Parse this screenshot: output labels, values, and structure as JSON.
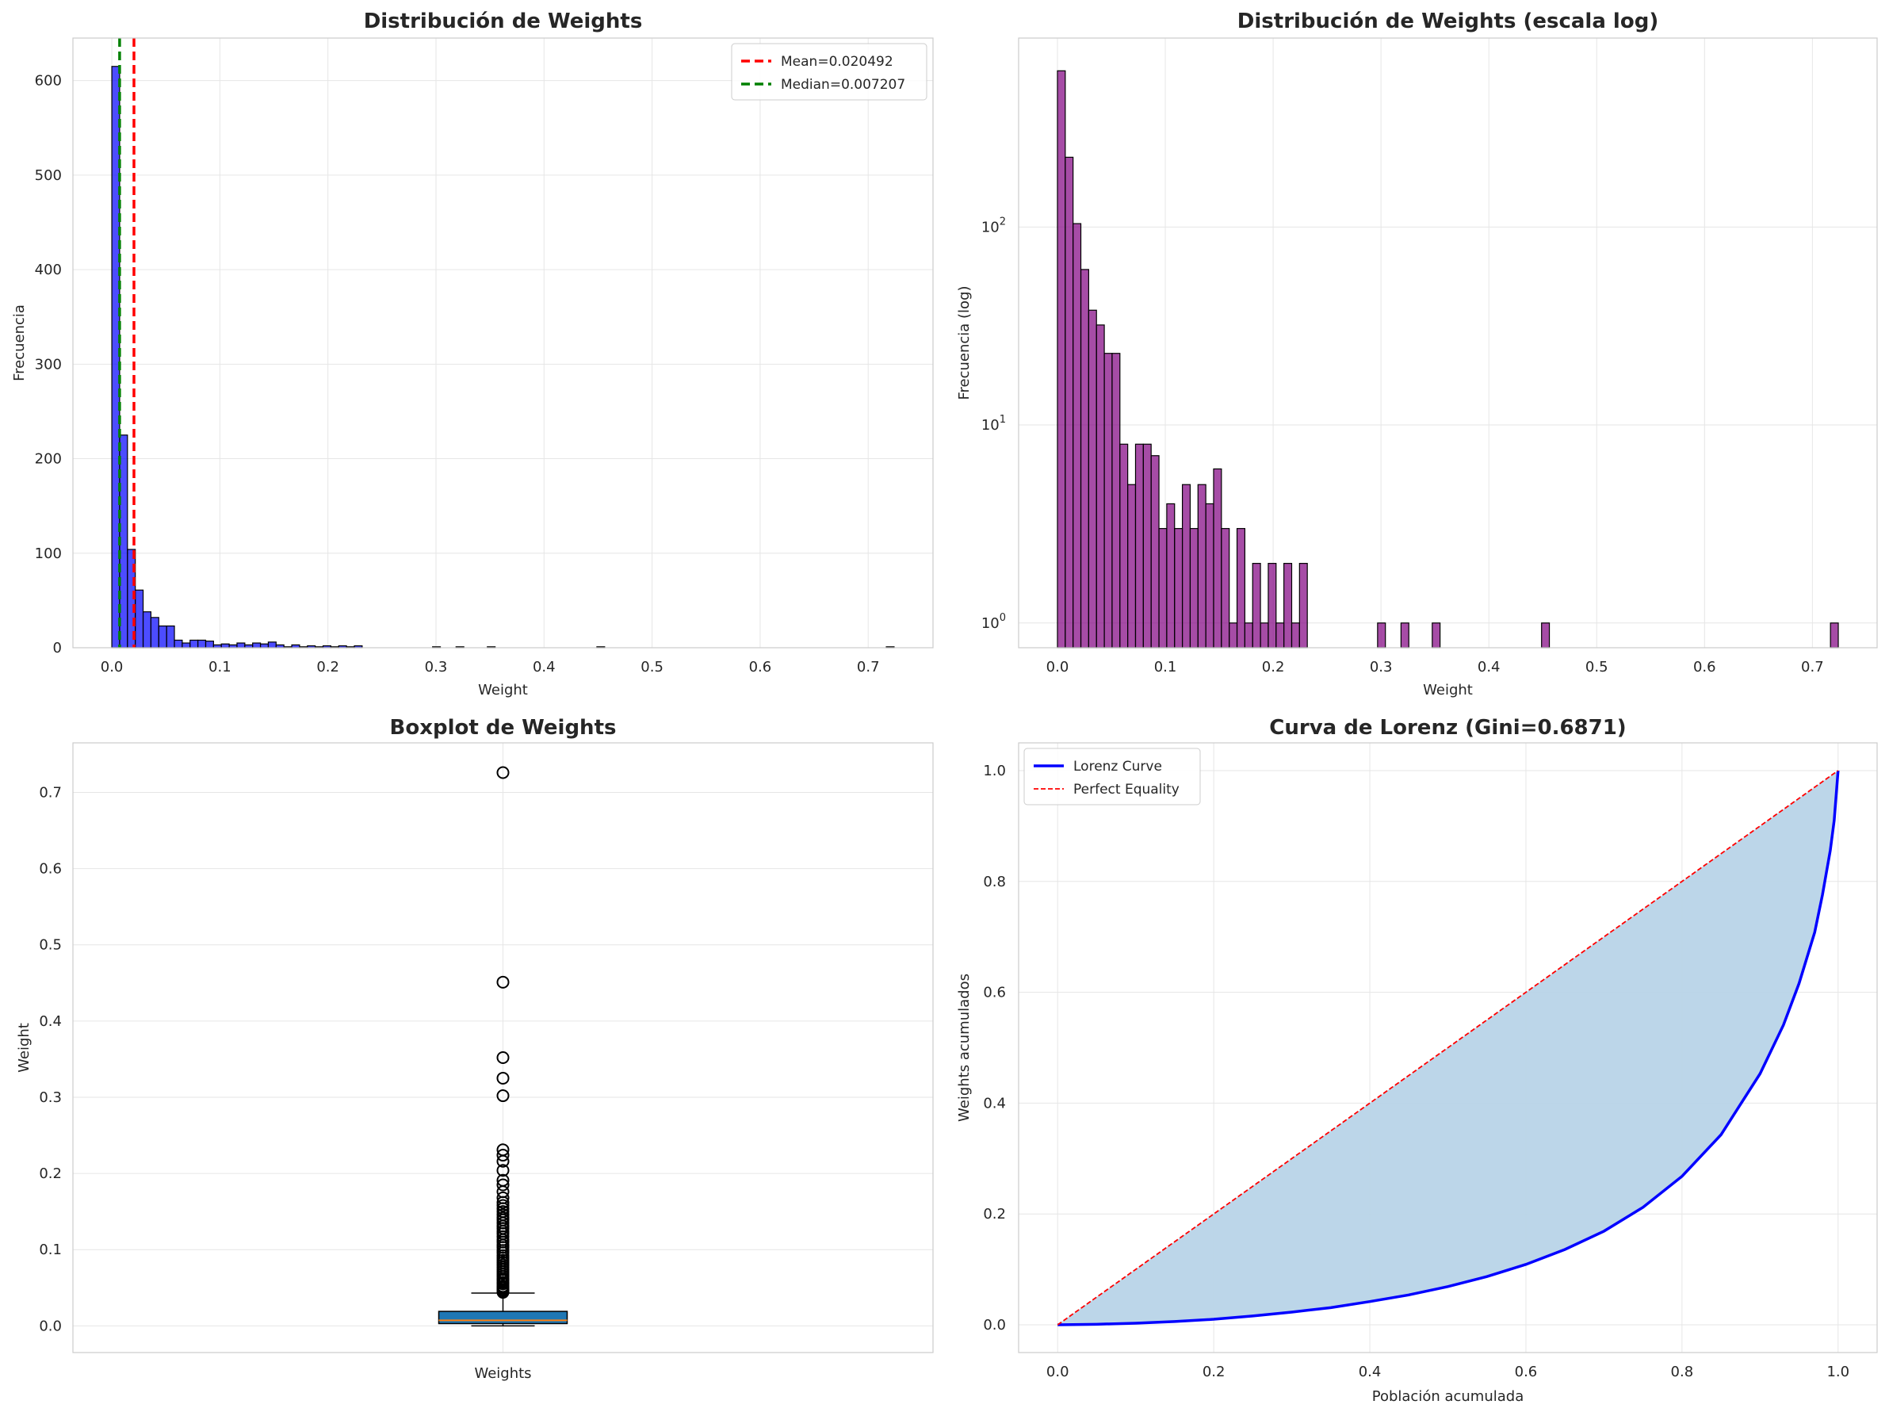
{
  "chart_data": [
    {
      "type": "bar",
      "title": "Distribución de Weights",
      "xlabel": "Weight",
      "ylabel": "Frecuencia",
      "xlim": [
        -0.036,
        0.76
      ],
      "ylim": [
        0,
        645
      ],
      "xticks": [
        "0.0",
        "0.1",
        "0.2",
        "0.3",
        "0.4",
        "0.5",
        "0.6",
        "0.7"
      ],
      "yticks": [
        "0",
        "100",
        "200",
        "300",
        "400",
        "500",
        "600"
      ],
      "bin_width": 0.00724,
      "bin_start": 0.0,
      "values": [
        615,
        225,
        104,
        61,
        38,
        32,
        23,
        23,
        8,
        5,
        8,
        8,
        7,
        3,
        4,
        3,
        5,
        3,
        5,
        4,
        6,
        3,
        1,
        3,
        1,
        2,
        1,
        2,
        1,
        2,
        1,
        2,
        0,
        0,
        0,
        0,
        0,
        0,
        0,
        0,
        0,
        1,
        0,
        0,
        1,
        0,
        0,
        0,
        1,
        0,
        0,
        0,
        0,
        0,
        0,
        0,
        0,
        0,
        0,
        0,
        0,
        0,
        1,
        0,
        0,
        0,
        0,
        0,
        0,
        0,
        0,
        0,
        0,
        0,
        0,
        0,
        0,
        0,
        0,
        0,
        0,
        0,
        0,
        0,
        0,
        0,
        0,
        0,
        0,
        0,
        0,
        0,
        0,
        0,
        0,
        0,
        0,
        0,
        0,
        1
      ],
      "bar_color": "#0000ff",
      "vlines": [
        {
          "name": "Mean=0.020492",
          "x": 0.020492,
          "color": "#ff0000"
        },
        {
          "name": "Median=0.007207",
          "x": 0.007207,
          "color": "#008000"
        }
      ],
      "legend_position": "top-right",
      "grid": true
    },
    {
      "type": "bar",
      "title": "Distribución de Weights (escala log)",
      "xlabel": "Weight",
      "ylabel": "Frecuencia (log)",
      "yscale": "log",
      "xlim": [
        -0.036,
        0.76
      ],
      "ylim": [
        0.75,
        900
      ],
      "xticks": [
        "0.0",
        "0.1",
        "0.2",
        "0.3",
        "0.4",
        "0.5",
        "0.6",
        "0.7"
      ],
      "yticks": [
        {
          "base": "10",
          "exp": "0",
          "value": 1
        },
        {
          "base": "10",
          "exp": "1",
          "value": 10
        },
        {
          "base": "10",
          "exp": "2",
          "value": 100
        }
      ],
      "bin_width": 0.00724,
      "bin_start": 0.0,
      "values": [
        615,
        225,
        104,
        61,
        38,
        32,
        23,
        23,
        8,
        5,
        8,
        8,
        7,
        3,
        4,
        3,
        5,
        3,
        5,
        4,
        6,
        3,
        1,
        3,
        1,
        2,
        1,
        2,
        1,
        2,
        1,
        2,
        0,
        0,
        0,
        0,
        0,
        0,
        0,
        0,
        0,
        1,
        0,
        0,
        1,
        0,
        0,
        0,
        1,
        0,
        0,
        0,
        0,
        0,
        0,
        0,
        0,
        0,
        0,
        0,
        0,
        0,
        1,
        0,
        0,
        0,
        0,
        0,
        0,
        0,
        0,
        0,
        0,
        0,
        0,
        0,
        0,
        0,
        0,
        0,
        0,
        0,
        0,
        0,
        0,
        0,
        0,
        0,
        0,
        0,
        0,
        0,
        0,
        0,
        0,
        0,
        0,
        0,
        0,
        1
      ],
      "bar_color": "#800080",
      "grid": true
    },
    {
      "type": "box",
      "title": "Boxplot de Weights",
      "xlabel": "",
      "ylabel": "Weight",
      "categories": [
        "Weights"
      ],
      "ylim": [
        -0.035,
        0.765
      ],
      "yticks": [
        "0.0",
        "0.1",
        "0.2",
        "0.3",
        "0.4",
        "0.5",
        "0.6",
        "0.7"
      ],
      "box": {
        "whisker_low": 0.0,
        "q1": 0.003,
        "median": 0.007207,
        "q3": 0.019,
        "whisker_high": 0.043
      },
      "box_color": "#1f77b4",
      "median_color": "#ff7f0e",
      "outliers": [
        0.726,
        0.451,
        0.352,
        0.325,
        0.302,
        0.231,
        0.224,
        0.216,
        0.204,
        0.191,
        0.185,
        0.176,
        0.168,
        0.162,
        0.158,
        0.154,
        0.15,
        0.146,
        0.142,
        0.139,
        0.135,
        0.131,
        0.128,
        0.124,
        0.121,
        0.117,
        0.113,
        0.11,
        0.106,
        0.103,
        0.099,
        0.096,
        0.092,
        0.089,
        0.086,
        0.083,
        0.08,
        0.077,
        0.074,
        0.071,
        0.068,
        0.065,
        0.062,
        0.06,
        0.057,
        0.055,
        0.052,
        0.05,
        0.048,
        0.046,
        0.044
      ],
      "grid": true
    },
    {
      "type": "line",
      "title": "Curva de Lorenz (Gini=0.6871)",
      "xlabel": "Población acumulada",
      "ylabel": "Weights acumulados",
      "xlim": [
        -0.05,
        1.05
      ],
      "ylim": [
        -0.05,
        1.05
      ],
      "xticks": [
        "0.0",
        "0.2",
        "0.4",
        "0.6",
        "0.8",
        "1.0"
      ],
      "yticks": [
        "0.0",
        "0.2",
        "0.4",
        "0.6",
        "0.8",
        "1.0"
      ],
      "series": [
        {
          "name": "Lorenz Curve",
          "color": "#0000ff",
          "x": [
            0.0,
            0.05,
            0.1,
            0.15,
            0.2,
            0.25,
            0.3,
            0.35,
            0.4,
            0.45,
            0.5,
            0.55,
            0.6,
            0.65,
            0.7,
            0.75,
            0.8,
            0.85,
            0.9,
            0.93,
            0.95,
            0.97,
            0.98,
            0.99,
            0.995,
            1.0
          ],
          "y": [
            0.0,
            0.001,
            0.003,
            0.006,
            0.01,
            0.016,
            0.023,
            0.031,
            0.042,
            0.054,
            0.069,
            0.087,
            0.109,
            0.136,
            0.169,
            0.212,
            0.268,
            0.343,
            0.453,
            0.541,
            0.616,
            0.708,
            0.776,
            0.856,
            0.91,
            1.0
          ]
        },
        {
          "name": "Perfect Equality",
          "color": "#ff0000",
          "dashed": true,
          "x": [
            0.0,
            1.0
          ],
          "y": [
            0.0,
            1.0
          ]
        }
      ],
      "fill_color": "#b8d4e8",
      "legend_position": "top-left",
      "grid": true
    }
  ]
}
